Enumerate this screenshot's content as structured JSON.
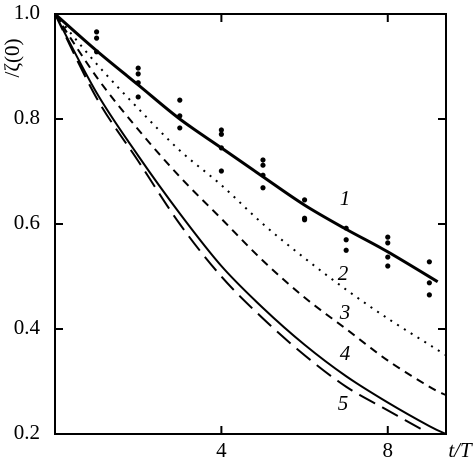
{
  "chart_data": {
    "type": "line",
    "y_label": "/ζ(0)",
    "x_label": "t/T",
    "xlim": [
      0,
      9.4
    ],
    "ylim": [
      0.2,
      1.0
    ],
    "xticks": [
      4,
      8
    ],
    "yticks": [
      0.2,
      0.4,
      0.6,
      {
        "value": 1.0,
        "label": "1.0"
      },
      0.8
    ],
    "series": [
      {
        "name": "1",
        "color": "#000",
        "width": 3,
        "dash": "none",
        "x": [
          0,
          1,
          2,
          3,
          4,
          5,
          6,
          7,
          8,
          9.2
        ],
        "values": [
          1,
          0.93,
          0.865,
          0.8,
          0.745,
          0.69,
          0.636,
          0.59,
          0.547,
          0.49
        ]
      },
      {
        "name": "2",
        "color": "#000",
        "width": 2,
        "dash": "2,6",
        "x": [
          0,
          1,
          2,
          3,
          4,
          5,
          6,
          7,
          8,
          9,
          9.4
        ],
        "values": [
          1,
          0.905,
          0.82,
          0.74,
          0.674,
          0.6,
          0.535,
          0.475,
          0.42,
          0.37,
          0.35
        ]
      },
      {
        "name": "3",
        "color": "#000",
        "width": 2,
        "dash": "8,6",
        "x": [
          0,
          1,
          2,
          3,
          4,
          5,
          6,
          7,
          8,
          9,
          9.4
        ],
        "values": [
          1,
          0.88,
          0.78,
          0.69,
          0.61,
          0.53,
          0.46,
          0.4,
          0.34,
          0.29,
          0.274
        ]
      },
      {
        "name": "4",
        "color": "#000",
        "width": 2,
        "dash": "none",
        "x": [
          0,
          1,
          2,
          3,
          4,
          5,
          6,
          7,
          8,
          9,
          9.4
        ],
        "values": [
          1,
          0.85,
          0.73,
          0.62,
          0.52,
          0.44,
          0.37,
          0.31,
          0.26,
          0.215,
          0.2
        ]
      },
      {
        "name": "5",
        "color": "#000",
        "width": 2,
        "dash": "18,8",
        "x": [
          0,
          1,
          2,
          3,
          4,
          5,
          6,
          7,
          8,
          8.9
        ],
        "values": [
          1,
          0.84,
          0.72,
          0.6,
          0.5,
          0.42,
          0.35,
          0.29,
          0.245,
          0.205
        ]
      }
    ],
    "points": {
      "color": "#000",
      "x": [
        1,
        1,
        1,
        2,
        2,
        2,
        2,
        3,
        3,
        3,
        4,
        4,
        4,
        4,
        5,
        5,
        5,
        5,
        6,
        6,
        6,
        7,
        7,
        7,
        8,
        8,
        8,
        8,
        9,
        9,
        9
      ],
      "values": [
        0.966,
        0.954,
        0.928,
        0.897,
        0.886,
        0.869,
        0.842,
        0.836,
        0.806,
        0.783,
        0.779,
        0.771,
        0.745,
        0.701,
        0.722,
        0.712,
        0.693,
        0.669,
        0.646,
        0.611,
        0.608,
        0.592,
        0.57,
        0.55,
        0.575,
        0.564,
        0.537,
        0.52,
        0.528,
        0.488,
        0.465
      ]
    }
  }
}
